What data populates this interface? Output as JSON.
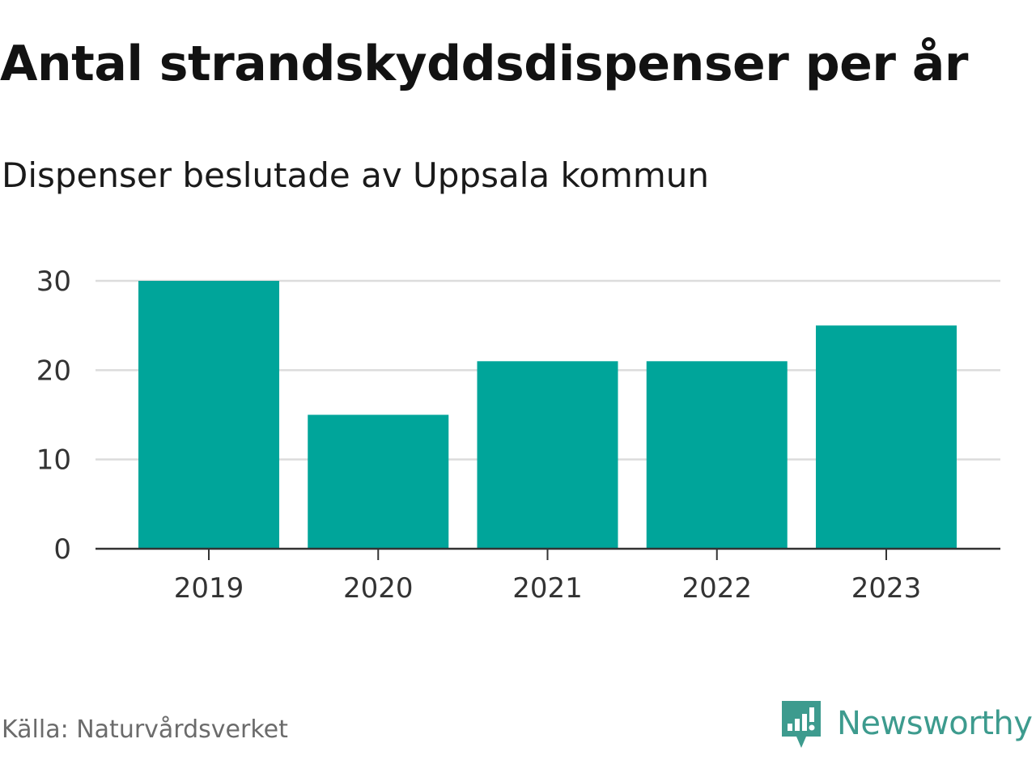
{
  "chart_data": {
    "type": "bar",
    "title": "Antal strandskyddsdispenser per år",
    "subtitle": "Dispenser beslutade av Uppsala kommun",
    "categories": [
      "2019",
      "2020",
      "2021",
      "2022",
      "2023"
    ],
    "values": [
      30,
      15,
      21,
      21,
      25
    ],
    "xlabel": "",
    "ylabel": "",
    "ylim": [
      0,
      30
    ],
    "yticks": [
      "0",
      "10",
      "20",
      "30"
    ],
    "grid": true,
    "bar_color": "#00a59a"
  },
  "footer": {
    "source": "Källa: Naturvårdsverket",
    "brand": "Newsworthy",
    "brand_color": "#3d9b8e",
    "brand_icon": "newsworthy-chart-icon"
  }
}
